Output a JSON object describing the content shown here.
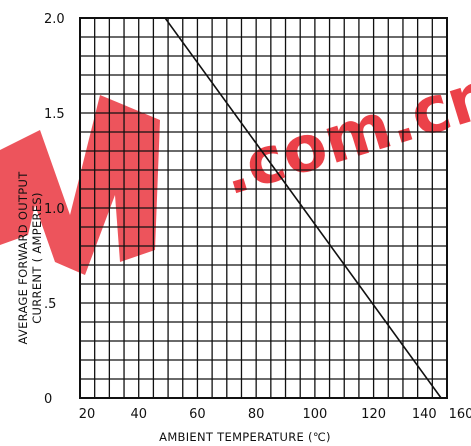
{
  "chart_data": {
    "type": "line",
    "xlabel": "AMBIENT TEMPERATURE (℃)",
    "ylabel_lines": [
      "AVERAGE FORWARD OUTPUT",
      "CURRENT ( AMPERES)"
    ],
    "xlim": [
      20,
      145
    ],
    "ylim": [
      0,
      2.0
    ],
    "x_ticks": [
      20,
      40,
      60,
      80,
      100,
      120,
      140,
      160
    ],
    "x_tick_labels": [
      "20",
      "40",
      "60",
      "80",
      "100",
      "120",
      "140",
      "160"
    ],
    "y_ticks": [
      0,
      0.5,
      1.0,
      1.5,
      2.0
    ],
    "y_tick_labels": [
      "0",
      ".5",
      "1.0",
      "1.5",
      "2.0"
    ],
    "x_grid_step": 5,
    "y_grid_step": 0.1,
    "grid": true,
    "series": [
      {
        "x": [
          20,
          49,
          143
        ],
        "y": [
          2.0,
          2.0,
          0
        ]
      }
    ]
  },
  "watermark": {
    "text": ".com.cn",
    "color": "#e8202a"
  }
}
